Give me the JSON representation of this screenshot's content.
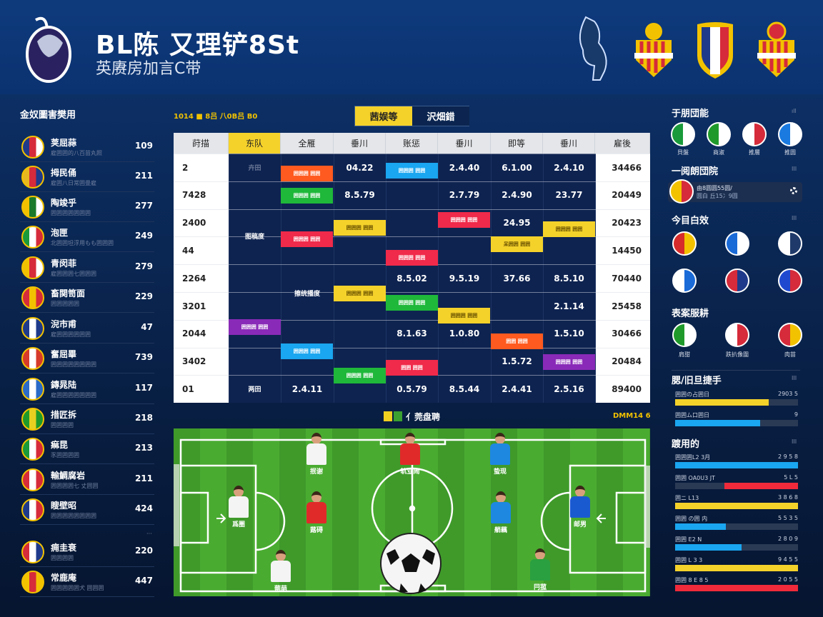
{
  "header": {
    "title": "BL陈 又理铲8St",
    "subtitle": "英赓房加言C带",
    "logo": "lion-globe-logo",
    "crests": [
      "lion-crest",
      "crown-yellow-red-crest",
      "tricolor-shield-crest",
      "crown-yellow-red-crest"
    ]
  },
  "left_panel": {
    "title": "金奴圖害樊用",
    "more": "···",
    "teams": [
      {
        "name": "荚屈蒜",
        "sub": "雇囲囲的八百苗丸照",
        "value": "109",
        "icon": "union-jack",
        "colors": [
          "#1f3a8a",
          "#d62b3a",
          "#ffffff"
        ]
      },
      {
        "name": "拇民俑",
        "sub": "雇囲八日常囲畳雇",
        "value": "211",
        "icon": "diamond-crest",
        "colors": [
          "#e8b820",
          "#d62b3a",
          "#1f3a8a"
        ]
      },
      {
        "name": "陶竣乎",
        "sub": "囲囲囲囲囲囲囲",
        "value": "277",
        "icon": "green-yellow-shield",
        "colors": [
          "#f2c200",
          "#1a7a2a",
          "#ffffff"
        ]
      },
      {
        "name": "泡匣",
        "sub": "北囲囲坦浮用もも囲囲囲",
        "value": "249",
        "icon": "italy-shield",
        "colors": [
          "#1a9a3a",
          "#ffffff",
          "#d62b3a"
        ]
      },
      {
        "name": "青闵菲",
        "sub": "雇囲囲囲七囲囲囲",
        "value": "279",
        "icon": "crown-striped-crest",
        "colors": [
          "#f2c200",
          "#d62b3a",
          "#ffffff"
        ]
      },
      {
        "name": "畜関笥面",
        "sub": "囲囲囲囲囲",
        "value": "229",
        "icon": "red-yellow-shield",
        "colors": [
          "#d62b3a",
          "#f2c200",
          "#d62b3a"
        ]
      },
      {
        "name": "淣市甫",
        "sub": "雇囲囲囲囲囲囲",
        "value": "47",
        "icon": "ball-crest",
        "colors": [
          "#1f3a8a",
          "#ffffff",
          "#1f3a8a"
        ]
      },
      {
        "name": "奮屈畢",
        "sub": "囲囲囲囲囲囲囲囲",
        "value": "739",
        "icon": "red-round-crest",
        "colors": [
          "#d63a2a",
          "#ffffff",
          "#d63a2a"
        ]
      },
      {
        "name": "鏄晁陆",
        "sub": "雇囲囲囲囲囲囲囲",
        "value": "117",
        "icon": "blue-white-crest",
        "colors": [
          "#2a6ac8",
          "#ffffff",
          "#2a6ac8"
        ]
      },
      {
        "name": "措匠拆",
        "sub": "囲囲囲囲",
        "value": "218",
        "icon": "green-yellow-crest",
        "colors": [
          "#1f9a2a",
          "#e8d020",
          "#1f9a2a"
        ]
      },
      {
        "name": "痲昆",
        "sub": "豕囲囲囲囲",
        "value": "213",
        "icon": "italy-round",
        "colors": [
          "#1a9a3a",
          "#ffffff",
          "#d62b3a"
        ]
      },
      {
        "name": "輸鯛腐岩",
        "sub": "囲囲囲囲七 丈囲囲",
        "value": "211",
        "icon": "red-white-flag",
        "colors": [
          "#d62b3a",
          "#ffffff",
          "#d62b3a"
        ]
      },
      {
        "name": "瞍壁昭",
        "sub": "囲囲囲囲囲囲囲囲",
        "value": "424",
        "icon": "france-shield",
        "colors": [
          "#1f3a8a",
          "#ffffff",
          "#d62b3a"
        ]
      },
      {
        "name": "痈圭衰",
        "sub": "囲囲囲囲",
        "value": "220",
        "icon": "red-ring-crest",
        "colors": [
          "#d62b3a",
          "#ffffff",
          "#1f3a8a"
        ]
      },
      {
        "name": "常鹿庵",
        "sub": "囲囲囲囲囲犬 囲囲囲",
        "value": "447",
        "icon": "yellow-red-crest",
        "colors": [
          "#f2c200",
          "#d62b3a",
          "#f2c200"
        ]
      }
    ]
  },
  "center": {
    "top_label": "1014 ■ 8吕 八0B吕 B0",
    "tabs": [
      {
        "label": "茜娱等",
        "active": true
      },
      {
        "label": "沢畑錯",
        "active": false
      }
    ],
    "table": {
      "headers": [
        "莳描",
        "东队",
        "全雁",
        "垂川",
        "账惩",
        "垂川",
        "即等",
        "垂川",
        "雇後"
      ],
      "rows": [
        [
          "2",
          "卉田",
          "",
          "04.22",
          "",
          "2.4.40",
          "6.1.00",
          "2.4.10",
          "34466"
        ],
        [
          "7428",
          "",
          "",
          "8.5.79",
          "",
          "2.7.79",
          "2.4.90",
          "23.77",
          "20449"
        ],
        [
          "2400",
          "图稿度",
          "",
          "",
          "",
          "",
          "24.95",
          "",
          "20423"
        ],
        [
          "44",
          "",
          "",
          "",
          "",
          "",
          "",
          "",
          "14450"
        ],
        [
          "2264",
          "",
          "",
          "",
          "8.5.02",
          "9.5.19",
          "37.66",
          "8.5.10",
          "70440"
        ],
        [
          "3201",
          "",
          "擦统播度",
          "",
          "",
          "",
          "",
          "2.1.14",
          "25458"
        ],
        [
          "2044",
          "",
          "",
          "",
          "8.1.63",
          "1.0.80",
          "",
          "1.5.10",
          "30466"
        ],
        [
          "3402",
          "",
          "",
          "",
          "",
          "",
          "1.5.72",
          "",
          "20484"
        ],
        [
          "01",
          "两田",
          "2.4.11",
          "",
          "0.5.79",
          "8.5.44",
          "2.4.41",
          "2.5.16",
          "89400"
        ]
      ],
      "blocks": [
        {
          "color": "#ff5a1f",
          "text": "囲囲囲 囲囲"
        },
        {
          "color": "#1aa6f0",
          "text": "囲囲囲 囲囲"
        },
        {
          "color": "#1fb83a",
          "text": "囲囲囲 囲囲"
        },
        {
          "color": "#f02a4a",
          "text": "囲囲囲 囲囲"
        },
        {
          "color": "#f5d22a",
          "text": "囲囲囲 囲囲"
        },
        {
          "color": "#f5d22a",
          "text": "囲囲囲 囲囲"
        },
        {
          "color": "#f02a4a",
          "text": "囲囲囲 囲囲"
        },
        {
          "color": "#f5d22a",
          "text": "呆囲囲 囲囲"
        },
        {
          "color": "#f02a4a",
          "text": "囲囲囲 囲囲"
        },
        {
          "color": "#f5d22a",
          "text": "囲囲囲 囲囲"
        },
        {
          "color": "#1fb83a",
          "text": "囲囲囲 囲囲"
        },
        {
          "color": "#f5d22a",
          "text": "囲囲囲 囲囲"
        },
        {
          "color": "#8a2ab8",
          "text": "囲囲囲 囲囲"
        },
        {
          "color": "#ff5a1f",
          "text": "囲囲 囲囲"
        },
        {
          "color": "#1aa6f0",
          "text": "囲囲囲 囲囲"
        },
        {
          "color": "#8a2ab8",
          "text": "囲囲囲 囲囲"
        },
        {
          "color": "#f02a4a",
          "text": "囲囲 囲囲"
        },
        {
          "color": "#1fb83a",
          "text": "囲囲囲 囲囲"
        }
      ]
    },
    "pitch": {
      "title": "亻莞盘聘",
      "right_label": "DMM14 6",
      "players": [
        {
          "name": "抿谢",
          "kit": "#f4f4f4"
        },
        {
          "name": "轨业闹",
          "kit": "#e02a2a"
        },
        {
          "name": "蛰现",
          "kit": "#1e88e0"
        },
        {
          "name": "爲圏",
          "kit": "#f4f4f4"
        },
        {
          "name": "蕗碍",
          "kit": "#e02a2a"
        },
        {
          "name": "艄藕",
          "kit": "#1e88e0"
        },
        {
          "name": "邮男",
          "kit": "#1a5ad0"
        },
        {
          "name": "蒴萌",
          "kit": "#f4f4f4"
        },
        {
          "name": "冃菰",
          "kit": "#2aa040"
        }
      ],
      "ball": "soccer-ball-icon"
    }
  },
  "right_panel": {
    "s1": {
      "title": "于朋団能",
      "more": "ıll",
      "items": [
        {
          "label": "貝盤",
          "colors": [
            "#1a9a3a",
            "#ffffff",
            "#d62b3a"
          ]
        },
        {
          "label": "商淑",
          "colors": [
            "#1f9a2a",
            "#ffffff",
            "#1f9a2a"
          ]
        },
        {
          "label": "推層",
          "colors": [
            "#ffffff",
            "#d62b3a",
            "#ffffff"
          ]
        },
        {
          "label": "推圆",
          "colors": [
            "#1a7ae0",
            "#ffffff",
            "#1a7ae0"
          ]
        }
      ]
    },
    "s2": {
      "title": "一阅朗団院",
      "more": "III",
      "card_line1": "由8圆圆55圆/",
      "card_line2": "圆白 丘15冫9圆",
      "card_icon": "settings-icon"
    },
    "s3": {
      "title": "今目白效",
      "more": "III",
      "items": [
        {
          "colors": [
            "#d62b2a",
            "#f2c200"
          ]
        },
        {
          "colors": [
            "#1a6ad8",
            "#ffffff"
          ]
        },
        {
          "colors": [
            "#ffffff",
            "#1f3a6a"
          ]
        },
        {
          "colors": [
            "#ffffff",
            "#1a6ad8"
          ]
        },
        {
          "colors": [
            "#d62b3a",
            "#1f3a8a"
          ]
        },
        {
          "colors": [
            "#1f4ad0",
            "#d62b3a"
          ]
        }
      ]
    },
    "s4": {
      "title": "表案服耕",
      "items": [
        {
          "label": "肩甜",
          "colors": [
            "#1f9a2a",
            "#ffffff"
          ]
        },
        {
          "label": "跌扒像圍",
          "colors": [
            "#ffffff",
            "#d62b3a"
          ]
        },
        {
          "label": "肉苗",
          "colors": [
            "#d62b3a",
            "#f2c200"
          ]
        }
      ]
    },
    "s5": {
      "title": "腮/旧旦捷手",
      "more": "III",
      "bars": [
        {
          "label": "囲囲の占囲日",
          "value": "2903 5",
          "fill": 0.76,
          "color": "#f5d22a"
        },
        {
          "label": "囲囲ム口囲日",
          "value": "9",
          "fill": 0.69,
          "color": "#1aa6f0"
        }
      ]
    },
    "s6": {
      "title": "踱用的",
      "more": "III",
      "bars": [
        {
          "label": "囲囲囲L2 3月",
          "value": "2 9 5 8",
          "fill": 1.0,
          "color": "#1aa6f0",
          "align": "left"
        },
        {
          "label": "囲囲 OA0U3 JT",
          "value": "5 L 5",
          "fill": 0.6,
          "color": "#f02a3a",
          "align": "right"
        },
        {
          "label": "囲ニ L13",
          "value": "3 8 6 8",
          "fill": 1.0,
          "color": "#f5d22a",
          "align": "left"
        },
        {
          "label": "囲囲 の囲 内",
          "value": "5 5 3 5",
          "fill": 0.41,
          "color": "#1aa6f0",
          "align": "left"
        },
        {
          "label": "囲囲 E2 N",
          "value": "2 8 0 9",
          "fill": 0.54,
          "color": "#1aa6f0",
          "align": "left"
        },
        {
          "label": "囲囲 L 3 3",
          "value": "9 4 5 5",
          "fill": 1.0,
          "color": "#f5d22a",
          "align": "left"
        },
        {
          "label": "囲囲 8 E 8 5",
          "value": "2 0 5 5",
          "fill": 1.0,
          "color": "#f02a3a",
          "align": "left"
        }
      ]
    }
  }
}
